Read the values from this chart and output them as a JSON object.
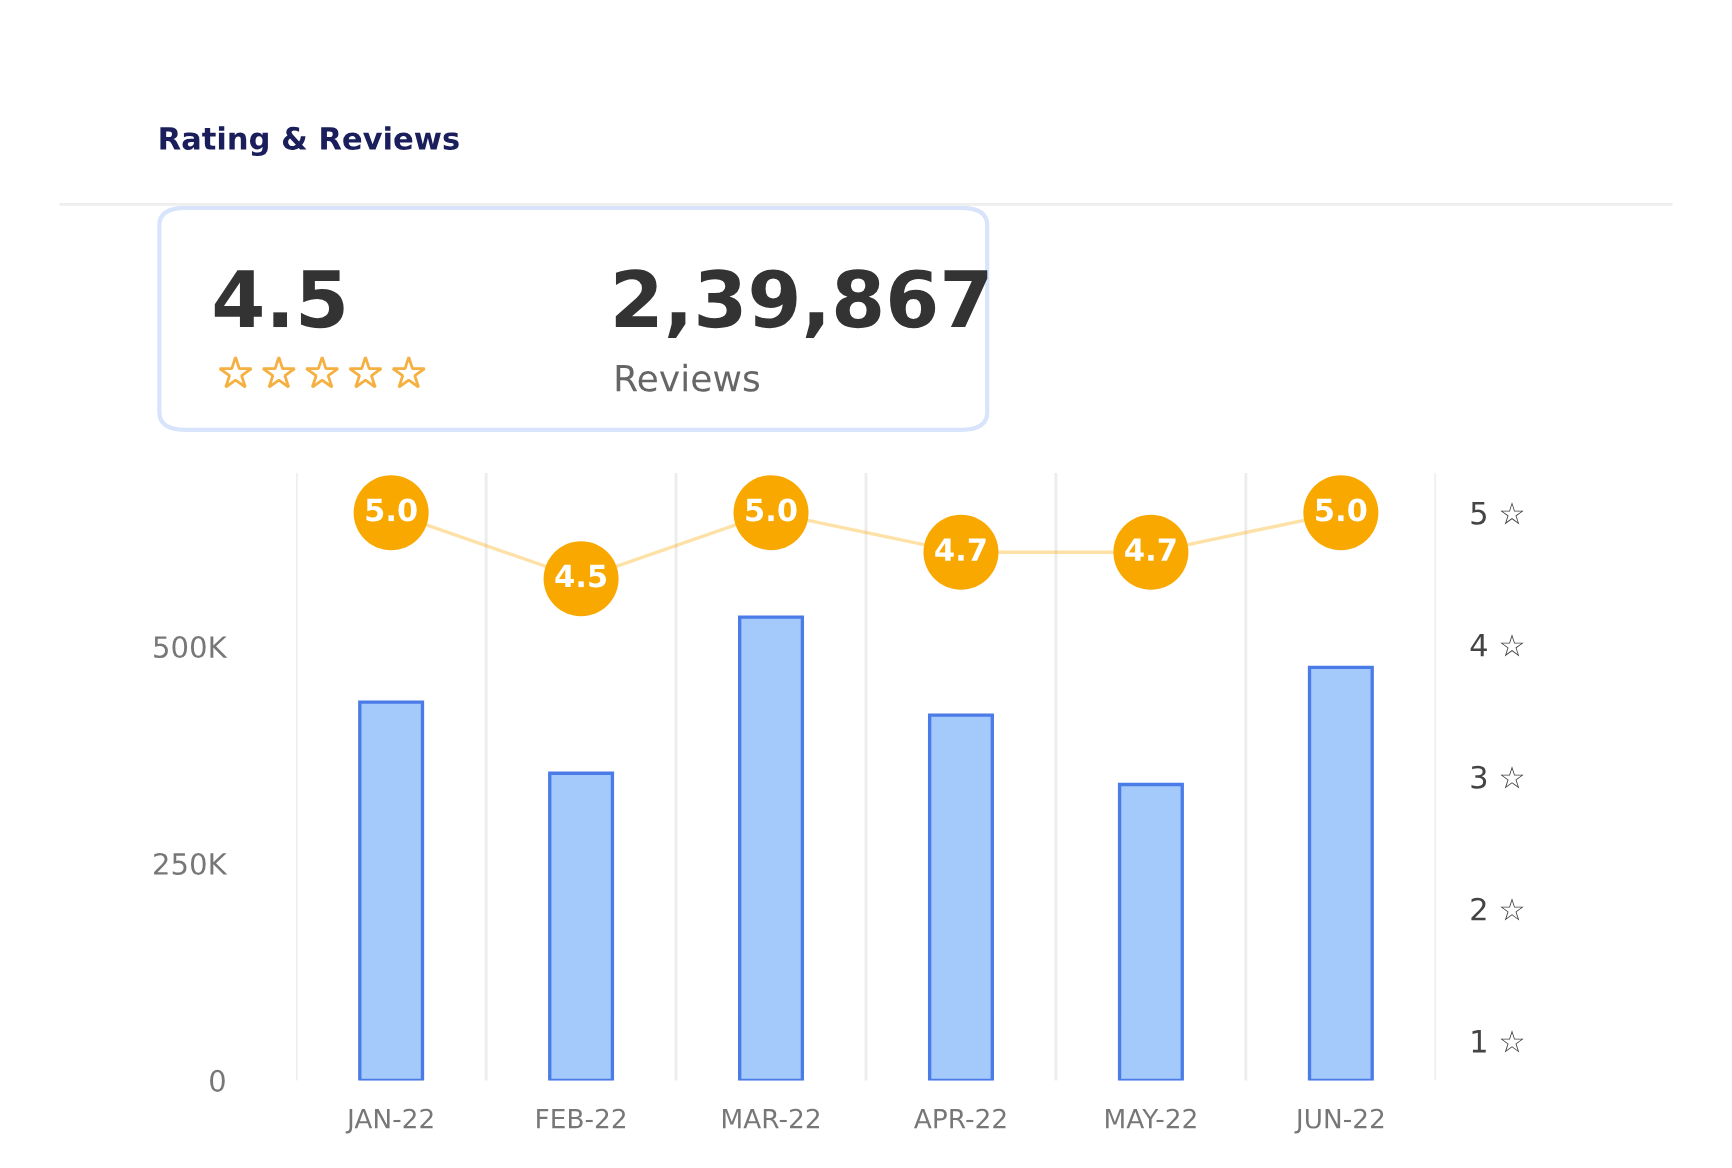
{
  "chart_data": {
    "type": "bar",
    "title": "Rating & Reviews",
    "annotations": [
      "4.5",
      "2,39,867",
      "Reviews"
    ],
    "categories": [
      "JAN-22",
      "FEB-22",
      "MAR-22",
      "APR-22",
      "MAY-22",
      "JUN-22"
    ],
    "series": [
      {
        "color": "#a4cafc",
        "values": [
          436000,
          354000,
          534000,
          421000,
          341000,
          476000
        ]
      },
      {
        "type": "line",
        "axis": "y2",
        "color": "#f9a800",
        "marker": "circle",
        "values": [
          5.0,
          4.5,
          5.0,
          4.7,
          4.7,
          5.0
        ],
        "value_labels": [
          "5.0",
          "4.5",
          "5.0",
          "4.7",
          "4.7",
          "5.0"
        ]
      }
    ],
    "ylim": [
      0,
      700000
    ],
    "yticks": [
      {
        "value": 0,
        "label": "0"
      },
      {
        "value": 250000,
        "label": "250K"
      },
      {
        "value": 500000,
        "label": "500K"
      }
    ],
    "y2lim": [
      0.7,
      5.3
    ],
    "y2ticks": [
      {
        "value": 1,
        "label": "1 ☆"
      },
      {
        "value": 2,
        "label": "2 ☆"
      },
      {
        "value": 3,
        "label": "3 ☆"
      },
      {
        "value": 4,
        "label": "4 ☆"
      },
      {
        "value": 5,
        "label": "5 ☆"
      }
    ],
    "grid": "x",
    "legend": false
  }
}
